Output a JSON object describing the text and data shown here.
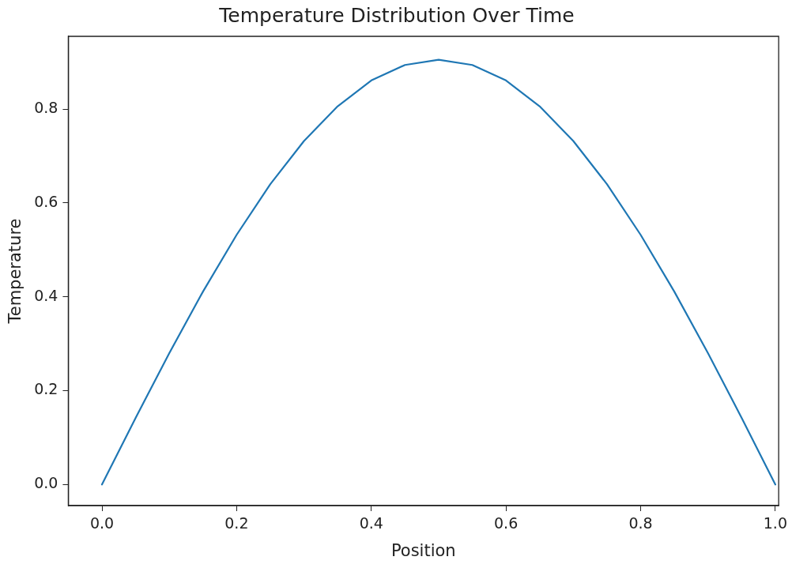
{
  "chart_data": {
    "type": "line",
    "title": "Temperature Distribution Over Time",
    "xlabel": "Position",
    "ylabel": "Temperature",
    "series": [
      {
        "color": "#1f77b4",
        "x": [
          0,
          0.05,
          0.1,
          0.15,
          0.2,
          0.25,
          0.3,
          0.35,
          0.4,
          0.45,
          0.5,
          0.55,
          0.6,
          0.65,
          0.7,
          0.75,
          0.8,
          0.85,
          0.9,
          0.95,
          1.0
        ],
        "values": [
          0,
          0.142,
          0.28,
          0.411,
          0.532,
          0.64,
          0.732,
          0.806,
          0.861,
          0.894,
          0.905,
          0.894,
          0.861,
          0.806,
          0.732,
          0.64,
          0.532,
          0.411,
          0.28,
          0.142,
          0
        ]
      }
    ],
    "xlim": [
      -0.05,
      1.005
    ],
    "ylim": [
      -0.045,
      0.955
    ],
    "xticks": [
      {
        "value": 0,
        "label": "0.0"
      },
      {
        "value": 0.2,
        "label": "0.2"
      },
      {
        "value": 0.4,
        "label": "0.4"
      },
      {
        "value": 0.6,
        "label": "0.6"
      },
      {
        "value": 0.8,
        "label": "0.8"
      },
      {
        "value": 1,
        "label": "1.0"
      }
    ],
    "yticks": [
      {
        "value": 0,
        "label": "0.0"
      },
      {
        "value": 0.2,
        "label": "0.2"
      },
      {
        "value": 0.4,
        "label": "0.4"
      },
      {
        "value": 0.6,
        "label": "0.6"
      },
      {
        "value": 0.8,
        "label": "0.8"
      }
    ],
    "grid": false,
    "legend": false,
    "marker": "none",
    "line_style": "solid"
  }
}
